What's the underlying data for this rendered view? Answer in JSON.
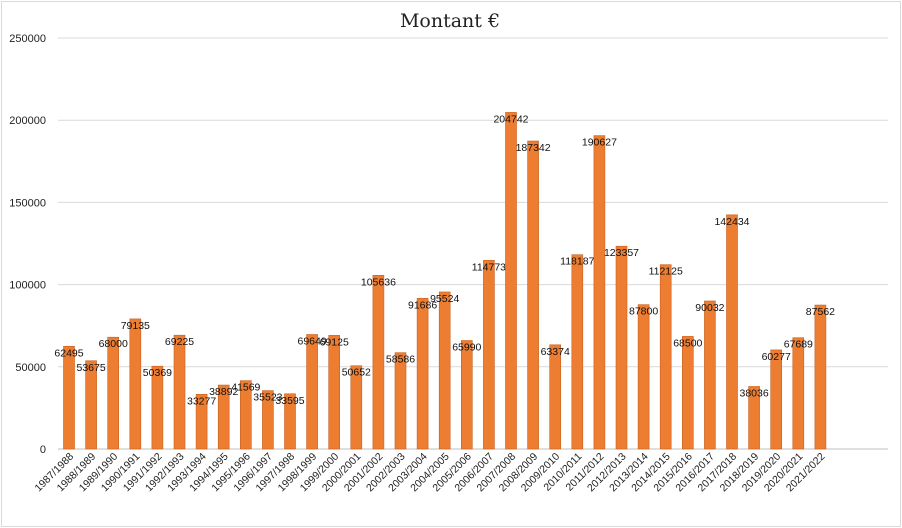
{
  "chart_data": {
    "type": "bar",
    "title": "Montant €",
    "xlabel": "",
    "ylabel": "",
    "ylim": [
      0,
      250000
    ],
    "yticks": [
      "0",
      "50000",
      "100000",
      "150000",
      "200000",
      "250000"
    ],
    "grid": true,
    "legend": "none",
    "bar_color": "#ED7D31",
    "bar_edge_color": "#c9601f",
    "categories": [
      "1987/1988",
      "1988/1989",
      "1989/1990",
      "1990/1991",
      "1991/1992",
      "1992/1993",
      "1993/1994",
      "1994/1995",
      "1995/1996",
      "1996/1997",
      "1997/1998",
      "1998/1999",
      "1999/2000",
      "2000/2001",
      "2001/2002",
      "2002/2003",
      "2003/2004",
      "2004/2005",
      "2005/2006",
      "2006/2007",
      "2007/2008",
      "2008/2009",
      "2009/2010",
      "2010/2011",
      "2011/2012",
      "2012/2013",
      "2013/2014",
      "2014/2015",
      "2015/2016",
      "2016/2017",
      "2017/2018",
      "2018/2019",
      "2019/2020",
      "2020/2021",
      "2021/2022"
    ],
    "values": [
      62495,
      53675,
      68000,
      79135,
      50369,
      69225,
      33277,
      38892,
      41569,
      35523,
      33595,
      69649,
      69125,
      50652,
      105636,
      58586,
      91686,
      95524,
      65990,
      114773,
      204742,
      187342,
      63374,
      118187,
      190627,
      123357,
      87800,
      112125,
      68500,
      90032,
      142434,
      38036,
      60277,
      67689,
      87562
    ]
  }
}
